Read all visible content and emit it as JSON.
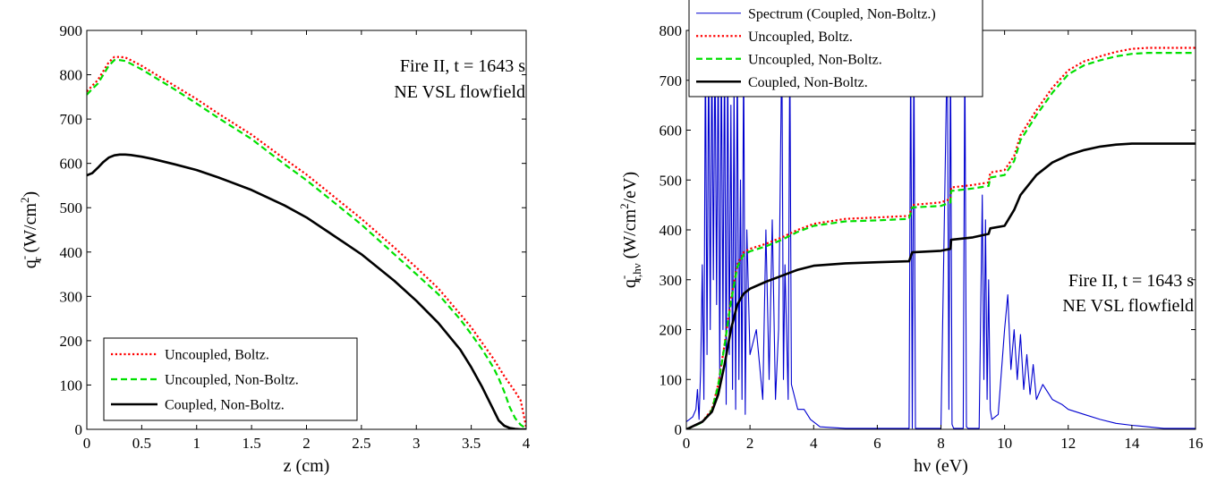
{
  "chart_data": [
    {
      "type": "line",
      "xlabel": "z (cm)",
      "ylabel": "q_r^- (W/cm^2)",
      "ylabel_parts": {
        "q": "q",
        "sup": "-",
        "sub": "r",
        "units": " (W/cm",
        "units_sup": "2",
        "close": ")"
      },
      "xlim": [
        0,
        4
      ],
      "ylim": [
        0,
        900
      ],
      "xticks": [
        "0",
        "0.5",
        "1",
        "1.5",
        "2",
        "2.5",
        "3",
        "3.5",
        "4"
      ],
      "yticks": [
        "0",
        "100",
        "200",
        "300",
        "400",
        "500",
        "600",
        "700",
        "800",
        "900"
      ],
      "grid": false,
      "legend_position": "bottom-left",
      "annotation": [
        "Fire II, t = 1643 s",
        "NE VSL flowfield"
      ],
      "series": [
        {
          "name": "Uncoupled, Boltz.",
          "color": "#ff0000",
          "style": "dotted",
          "x": [
            0,
            0.05,
            0.1,
            0.15,
            0.2,
            0.25,
            0.3,
            0.35,
            0.4,
            0.5,
            0.6,
            0.8,
            1.0,
            1.2,
            1.5,
            1.8,
            2.0,
            2.2,
            2.5,
            2.8,
            3.0,
            3.2,
            3.4,
            3.5,
            3.6,
            3.7,
            3.8,
            3.9,
            3.95,
            4.0
          ],
          "y": [
            762,
            775,
            788,
            808,
            828,
            840,
            840,
            839,
            833,
            820,
            805,
            775,
            745,
            712,
            665,
            610,
            575,
            535,
            475,
            410,
            365,
            318,
            260,
            230,
            195,
            160,
            120,
            85,
            65,
            5
          ]
        },
        {
          "name": "Uncoupled, Non-Boltz.",
          "color": "#00e000",
          "style": "dashed",
          "x": [
            0,
            0.05,
            0.1,
            0.15,
            0.2,
            0.25,
            0.3,
            0.35,
            0.4,
            0.5,
            0.6,
            0.8,
            1.0,
            1.2,
            1.5,
            1.8,
            2.0,
            2.2,
            2.5,
            2.8,
            3.0,
            3.2,
            3.4,
            3.5,
            3.6,
            3.7,
            3.75,
            3.8,
            3.85,
            3.9,
            3.95,
            4.0
          ],
          "y": [
            755,
            768,
            780,
            800,
            820,
            833,
            833,
            831,
            825,
            812,
            797,
            767,
            735,
            702,
            655,
            598,
            562,
            522,
            462,
            395,
            350,
            305,
            248,
            215,
            180,
            140,
            115,
            85,
            50,
            25,
            10,
            2
          ]
        },
        {
          "name": "Coupled, Non-Boltz.",
          "color": "#000000",
          "style": "solid",
          "x": [
            0,
            0.05,
            0.1,
            0.15,
            0.2,
            0.25,
            0.3,
            0.35,
            0.4,
            0.5,
            0.6,
            0.8,
            1.0,
            1.2,
            1.5,
            1.8,
            2.0,
            2.2,
            2.5,
            2.8,
            3.0,
            3.2,
            3.4,
            3.5,
            3.6,
            3.7,
            3.75,
            3.8,
            3.85,
            3.9,
            3.95,
            4.0
          ],
          "y": [
            573,
            578,
            590,
            603,
            613,
            618,
            620,
            620,
            619,
            615,
            610,
            598,
            585,
            568,
            540,
            505,
            478,
            445,
            395,
            335,
            290,
            240,
            180,
            140,
            95,
            45,
            20,
            8,
            3,
            1,
            0,
            0
          ]
        }
      ]
    },
    {
      "type": "line",
      "xlabel": "hν (eV)",
      "ylabel": "q_r,hν^- (W/cm^2/eV)",
      "ylabel_parts": {
        "q": "q",
        "sup": "-",
        "sub": "r,hν",
        "units": " (W/cm",
        "units_sup": "2",
        "close": "/eV)"
      },
      "xlim": [
        0,
        16
      ],
      "ylim": [
        0,
        800
      ],
      "xticks": [
        "0",
        "2",
        "4",
        "6",
        "8",
        "10",
        "12",
        "14",
        "16"
      ],
      "yticks": [
        "0",
        "100",
        "200",
        "300",
        "400",
        "500",
        "600",
        "700",
        "800"
      ],
      "grid": false,
      "legend_position": "top-left",
      "annotation": [
        "Fire II, t = 1643 s",
        "NE VSL flowfield"
      ],
      "series": [
        {
          "name": "Spectrum (Coupled, Non-Boltz.)",
          "color": "#0000d0",
          "style": "thin",
          "x": [
            0,
            0.2,
            0.3,
            0.35,
            0.4,
            0.45,
            0.5,
            0.55,
            0.6,
            0.65,
            0.7,
            0.75,
            0.8,
            0.85,
            0.9,
            0.95,
            1.0,
            1.05,
            1.1,
            1.15,
            1.2,
            1.25,
            1.3,
            1.35,
            1.4,
            1.45,
            1.5,
            1.55,
            1.6,
            1.65,
            1.7,
            1.75,
            1.8,
            1.85,
            1.9,
            2.0,
            2.2,
            2.4,
            2.5,
            2.6,
            2.7,
            2.8,
            2.9,
            3.0,
            3.05,
            3.1,
            3.2,
            3.25,
            3.3,
            3.5,
            3.7,
            3.9,
            4.2,
            5.0,
            6.0,
            7.0,
            7.05,
            7.1,
            7.15,
            7.2,
            7.5,
            8.0,
            8.2,
            8.25,
            8.3,
            8.35,
            8.4,
            8.7,
            8.75,
            8.8,
            8.85,
            9.0,
            9.2,
            9.3,
            9.35,
            9.4,
            9.45,
            9.5,
            9.55,
            9.6,
            9.8,
            10.0,
            10.1,
            10.2,
            10.3,
            10.4,
            10.5,
            10.6,
            10.7,
            10.8,
            10.9,
            11.0,
            11.2,
            11.5,
            11.8,
            12.0,
            12.5,
            13.0,
            13.5,
            14.0,
            14.5,
            15.0,
            16.0
          ],
          "y": [
            15,
            25,
            40,
            80,
            20,
            120,
            330,
            60,
            780,
            150,
            780,
            200,
            780,
            300,
            780,
            250,
            780,
            100,
            780,
            200,
            780,
            50,
            780,
            150,
            650,
            80,
            700,
            40,
            780,
            100,
            500,
            60,
            780,
            30,
            400,
            150,
            200,
            60,
            400,
            100,
            420,
            60,
            200,
            780,
            100,
            330,
            60,
            780,
            90,
            40,
            40,
            20,
            5,
            2,
            2,
            2,
            780,
            2,
            780,
            2,
            2,
            2,
            780,
            40,
            780,
            10,
            2,
            2,
            780,
            5,
            2,
            2,
            2,
            470,
            100,
            420,
            60,
            300,
            40,
            20,
            30,
            200,
            270,
            120,
            200,
            100,
            190,
            80,
            150,
            70,
            130,
            60,
            90,
            60,
            50,
            40,
            30,
            20,
            12,
            8,
            5,
            2,
            2
          ]
        },
        {
          "name": "Uncoupled, Boltz.",
          "color": "#ff0000",
          "style": "dotted",
          "x": [
            0,
            0.5,
            0.8,
            1.0,
            1.2,
            1.4,
            1.6,
            1.8,
            2.0,
            2.5,
            3.0,
            3.5,
            4.0,
            5.0,
            6.0,
            7.0,
            7.08,
            7.1,
            8.0,
            8.3,
            8.32,
            9.0,
            9.5,
            9.55,
            10.0,
            10.3,
            10.5,
            11.0,
            11.5,
            12.0,
            12.5,
            13.0,
            13.5,
            14.0,
            14.5,
            15.0,
            16.0
          ],
          "y": [
            0,
            15,
            40,
            90,
            170,
            260,
            330,
            355,
            362,
            372,
            385,
            400,
            412,
            422,
            425,
            428,
            445,
            450,
            455,
            462,
            485,
            490,
            495,
            515,
            520,
            548,
            590,
            640,
            685,
            720,
            738,
            748,
            757,
            763,
            765,
            765,
            765
          ]
        },
        {
          "name": "Uncoupled, Non-Boltz.",
          "color": "#00e000",
          "style": "dashed",
          "x": [
            0,
            0.5,
            0.8,
            1.0,
            1.2,
            1.4,
            1.6,
            1.8,
            2.0,
            2.5,
            3.0,
            3.5,
            4.0,
            5.0,
            6.0,
            7.0,
            7.08,
            7.1,
            8.0,
            8.3,
            8.32,
            9.0,
            9.5,
            9.55,
            10.0,
            10.3,
            10.5,
            11.0,
            11.5,
            12.0,
            12.5,
            13.0,
            13.5,
            14.0,
            14.5,
            15.0,
            16.0
          ],
          "y": [
            0,
            14,
            38,
            88,
            168,
            255,
            325,
            350,
            357,
            367,
            380,
            396,
            408,
            417,
            419,
            422,
            440,
            445,
            448,
            455,
            478,
            483,
            488,
            505,
            510,
            538,
            580,
            630,
            675,
            712,
            730,
            740,
            748,
            753,
            755,
            755,
            755
          ]
        },
        {
          "name": "Coupled, Non-Boltz.",
          "color": "#000000",
          "style": "solid",
          "x": [
            0,
            0.5,
            0.8,
            1.0,
            1.2,
            1.4,
            1.6,
            1.8,
            2.0,
            2.5,
            3.0,
            3.5,
            4.0,
            5.0,
            6.0,
            7.0,
            7.08,
            7.1,
            8.0,
            8.3,
            8.32,
            9.0,
            9.5,
            9.55,
            10.0,
            10.3,
            10.5,
            11.0,
            11.5,
            12.0,
            12.5,
            13.0,
            13.5,
            14.0,
            14.5,
            15.0,
            16.0
          ],
          "y": [
            0,
            15,
            35,
            70,
            130,
            200,
            250,
            272,
            282,
            296,
            308,
            320,
            328,
            333,
            335,
            337,
            352,
            355,
            358,
            362,
            380,
            385,
            392,
            403,
            408,
            440,
            470,
            510,
            535,
            550,
            560,
            567,
            571,
            573,
            573,
            573,
            573
          ]
        }
      ]
    }
  ]
}
